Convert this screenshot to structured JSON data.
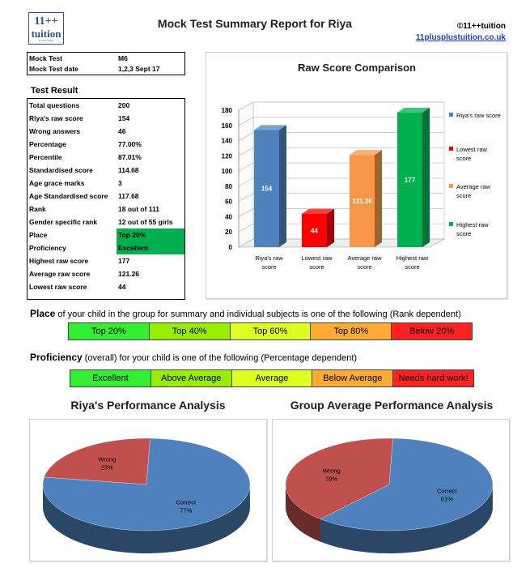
{
  "header": {
    "logo_line1": "11++",
    "logo_line2": "tuition",
    "logo_tagline": "11 plus tuition",
    "title": "Mock Test Summary Report for Riya",
    "copyright": "©11++tuition",
    "website": "11plusplustuition.co.uk"
  },
  "test_info": [
    {
      "label": "Mock Test",
      "value": "M6"
    },
    {
      "label": "Mock Test date",
      "value": "1,2,3 Sept 17"
    }
  ],
  "test_result": {
    "heading": "Test Result",
    "rows": [
      {
        "label": "Total questions",
        "value": "200"
      },
      {
        "label": "Riya's raw score",
        "value": "154"
      },
      {
        "label": "Wrong answers",
        "value": "46"
      },
      {
        "label": "Percentage",
        "value": "77.00%"
      },
      {
        "label": "Percentile",
        "value": "87.01%"
      },
      {
        "label": "Standardised score",
        "value": "114.68"
      },
      {
        "label": "Age grace marks",
        "value": "3"
      },
      {
        "label": "Age Standardised score",
        "value": "117.68"
      },
      {
        "label": "Rank",
        "value": "18 out of 111"
      },
      {
        "label": "Gender specific rank",
        "value": "12 out of 55 girls"
      },
      {
        "label": "Place",
        "value": "Top 20%"
      },
      {
        "label": "Proficiency",
        "value": "Excellent"
      },
      {
        "label": "Highest raw score",
        "value": "177"
      },
      {
        "label": "Average raw score",
        "value": "121.26"
      },
      {
        "label": "Lowest raw score",
        "value": "44"
      }
    ]
  },
  "colors": {
    "riya": "#4f81bd",
    "lowest": "#ff0000",
    "average": "#f79646",
    "highest": "#00b050",
    "place_highlight": "#00b050",
    "pie_correct": "#4f81bd",
    "pie_wrong": "#c0504d"
  },
  "chart_data": [
    {
      "type": "bar",
      "title": "Raw Score Comparison",
      "categories": [
        "Riya's raw score",
        "Lowest raw score",
        "Average raw score",
        "Highest raw score"
      ],
      "category_lines": [
        [
          "Riya's raw",
          "score"
        ],
        [
          "Lowest raw",
          "score"
        ],
        [
          "Average raw",
          "score"
        ],
        [
          "Highest raw",
          "score"
        ]
      ],
      "values": [
        154,
        44,
        121.26,
        177
      ],
      "value_labels": [
        "154",
        "44",
        "121.26",
        "177"
      ],
      "legend": [
        "Riya's raw score",
        "Lowest raw score",
        "Average raw score",
        "Highest raw score"
      ],
      "legend_lines": [
        [
          "Riya's raw score"
        ],
        [
          "Lowest raw",
          "score"
        ],
        [
          "Average raw",
          "score"
        ],
        [
          "Highest raw",
          "score"
        ]
      ],
      "ylim": [
        0,
        180
      ],
      "yticks": [
        "0",
        "20",
        "40",
        "60",
        "80",
        "100",
        "120",
        "140",
        "160",
        "180"
      ],
      "legend_position": "right"
    },
    {
      "type": "pie",
      "title": "Riya's Performance Analysis",
      "slices": [
        {
          "label": "Correct",
          "value": 77,
          "pct_label": "77%"
        },
        {
          "label": "Wrong",
          "value": 23,
          "pct_label": "23%"
        }
      ]
    },
    {
      "type": "pie",
      "title": "Group Average Performance Analysis",
      "slices": [
        {
          "label": "Correct",
          "value": 61,
          "pct_label": "61%"
        },
        {
          "label": "Wrong",
          "value": 39,
          "pct_label": "39%"
        }
      ]
    }
  ],
  "place_legend": {
    "lead": "Place",
    "text": " of your child in the group for summary and individual subjects is one of the following (Rank dependent)",
    "items": [
      {
        "label": "Top 20%",
        "color": "#33ee33"
      },
      {
        "label": "Top 40%",
        "color": "#99ee00"
      },
      {
        "label": "Top 60%",
        "color": "#ddff22"
      },
      {
        "label": "Top 80%",
        "color": "#ffaa33"
      },
      {
        "label": "Below 20%",
        "color": "#ff2222"
      }
    ]
  },
  "proficiency_legend": {
    "lead": "Proficiency",
    "text": " (overall) for your child is one of the following (Percentage dependent)",
    "items": [
      {
        "label": "Excellent",
        "color": "#33ee33"
      },
      {
        "label": "Above Average",
        "color": "#99ee00"
      },
      {
        "label": "Average",
        "color": "#ddff22"
      },
      {
        "label": "Below Average",
        "color": "#ffaa33"
      },
      {
        "label": "Needs hard work!",
        "color": "#ff2222"
      }
    ]
  }
}
